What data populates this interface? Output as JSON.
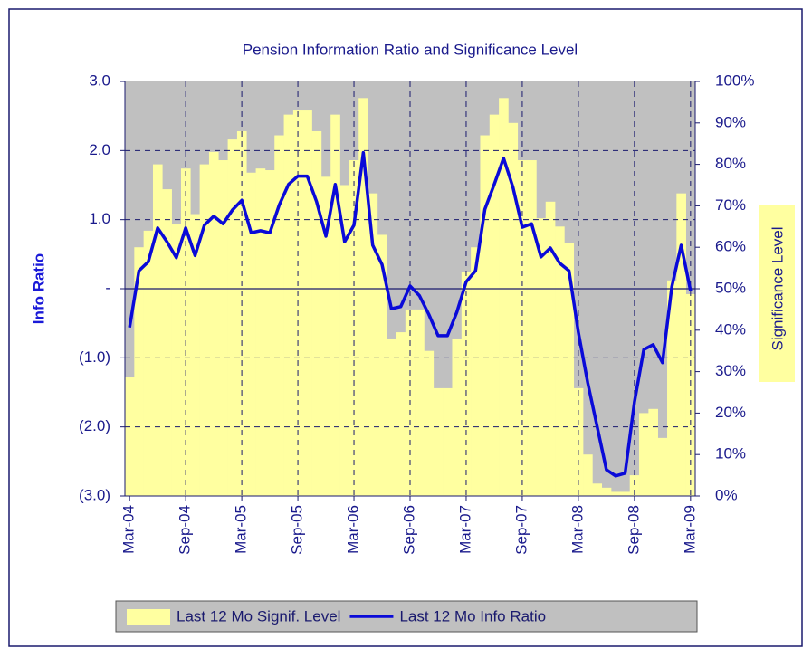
{
  "chart_data": {
    "type": "combo",
    "title": "Pension Information Ratio and Significance Level",
    "y_label": "Info Ratio",
    "y2_label": "Significance Level",
    "categories": [
      "Mar-04",
      null,
      null,
      null,
      null,
      null,
      "Sep-04",
      null,
      null,
      null,
      null,
      null,
      "Mar-05",
      null,
      null,
      null,
      null,
      null,
      "Sep-05",
      null,
      null,
      null,
      null,
      null,
      "Mar-06",
      null,
      null,
      null,
      null,
      null,
      "Sep-06",
      null,
      null,
      null,
      null,
      null,
      "Mar-07",
      null,
      null,
      null,
      null,
      null,
      "Sep-07",
      null,
      null,
      null,
      null,
      null,
      "Mar-08",
      null,
      null,
      null,
      null,
      null,
      "Sep-08",
      null,
      null,
      null,
      null,
      null,
      "Mar-09"
    ],
    "series": [
      {
        "name": "Last 12 Mo Signif. Level",
        "type": "bar",
        "axis": "y2",
        "color": "#ffffa0",
        "values": [
          28.6,
          60,
          64,
          80,
          74,
          65.5,
          79,
          68,
          80,
          83,
          81,
          86,
          88,
          78,
          79,
          78.6,
          87,
          92,
          93,
          93,
          88,
          77,
          92,
          75,
          81,
          96,
          73,
          63,
          38,
          39.5,
          45,
          45,
          35,
          26,
          26,
          38,
          54,
          60,
          87,
          92,
          96,
          90,
          81,
          81,
          67,
          71,
          65,
          61,
          26,
          10,
          3,
          2,
          1,
          1,
          5,
          20,
          21,
          14,
          52,
          73,
          48.7
        ]
      },
      {
        "name": "Last 12 Mo Info Ratio",
        "type": "line",
        "axis": "y",
        "color": "#0a0ad8",
        "values": [
          -0.56,
          0.26,
          0.39,
          0.88,
          0.68,
          0.45,
          0.88,
          0.48,
          0.92,
          1.05,
          0.94,
          1.14,
          1.28,
          0.81,
          0.84,
          0.81,
          1.21,
          1.51,
          1.63,
          1.63,
          1.26,
          0.76,
          1.51,
          0.68,
          0.92,
          1.97,
          0.63,
          0.35,
          -0.29,
          -0.26,
          0.04,
          -0.1,
          -0.37,
          -0.68,
          -0.68,
          -0.34,
          0.1,
          0.26,
          1.15,
          1.51,
          1.89,
          1.47,
          0.89,
          0.94,
          0.46,
          0.59,
          0.37,
          0.26,
          -0.63,
          -1.36,
          -1.99,
          -2.62,
          -2.71,
          -2.67,
          -1.64,
          -0.88,
          -0.81,
          -1.07,
          0.03,
          0.63,
          -0.03
        ]
      }
    ],
    "ylim": [
      -3,
      3
    ],
    "yticks": [
      {
        "value": 3,
        "label": "3.0"
      },
      {
        "value": 2,
        "label": "2.0"
      },
      {
        "value": 1,
        "label": "1.0"
      },
      {
        "value": 0,
        "label": "-"
      },
      {
        "value": -1,
        "label": "(1.0)"
      },
      {
        "value": -2,
        "label": "(2.0)"
      },
      {
        "value": -3,
        "label": "(3.0)"
      }
    ],
    "y2lim": [
      0,
      100
    ],
    "y2ticks": [
      {
        "value": 100,
        "label": "100%"
      },
      {
        "value": 90,
        "label": "90%"
      },
      {
        "value": 80,
        "label": "80%"
      },
      {
        "value": 70,
        "label": "70%"
      },
      {
        "value": 60,
        "label": "60%"
      },
      {
        "value": 50,
        "label": "50%"
      },
      {
        "value": 40,
        "label": "40%"
      },
      {
        "value": 30,
        "label": "30%"
      },
      {
        "value": 20,
        "label": "20%"
      },
      {
        "value": 10,
        "label": "10%"
      },
      {
        "value": 0,
        "label": "0%"
      }
    ],
    "grid": true,
    "plot_background": "#c0c0c0",
    "legend": "bottom"
  }
}
